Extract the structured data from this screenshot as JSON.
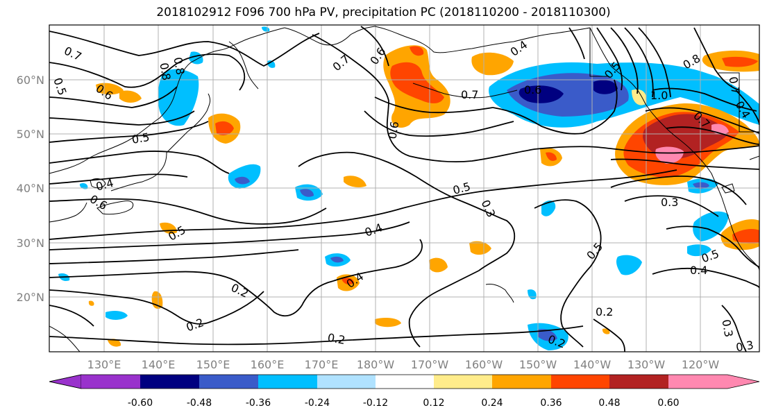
{
  "title": "2018102912 F096 700 hPa PV, precipitation PC (2018110200 - 2018110300)",
  "lat_ticks": [
    "60°N",
    "50°N",
    "40°N",
    "30°N",
    "20°N"
  ],
  "lon_ticks": [
    "130°E",
    "140°E",
    "150°E",
    "160°E",
    "170°E",
    "180°W",
    "170°W",
    "160°W",
    "150°W",
    "140°W",
    "130°W",
    "120°W"
  ],
  "contour_labels": [
    "0.7",
    "0.5",
    "0.6",
    "0.8",
    "0.8",
    "0.6",
    "0.7",
    "0.6",
    "0.4",
    "0.5",
    "0.6",
    "0.7",
    "0.4",
    "0.5",
    "1.0",
    "0.7",
    "0.5",
    "0.4",
    "0.6",
    "0.5",
    "0.4",
    "0.3",
    "0.5",
    "0.3",
    "0.5",
    "0.4",
    "0.2",
    "0.3",
    "0.2",
    "0.2",
    "0.2",
    "0.3",
    "0.2",
    "0.8",
    "0.7",
    "0.4"
  ],
  "colorbar": {
    "labels": [
      "-0.60",
      "-0.48",
      "-0.36",
      "-0.24",
      "-0.12",
      "0.12",
      "0.24",
      "0.36",
      "0.48",
      "0.60"
    ],
    "colors": [
      "#9932cc",
      "#000080",
      "#3a5bc9",
      "#00bfff",
      "#b0e2ff",
      "#ffffff",
      "#ffec8b",
      "#ffa500",
      "#ff4500",
      "#b22222",
      "#ff88b0"
    ]
  },
  "colors": {
    "negative_fill": "#00bfff",
    "positive_fill": "#ffa500",
    "grid": "#b0b0b0"
  }
}
